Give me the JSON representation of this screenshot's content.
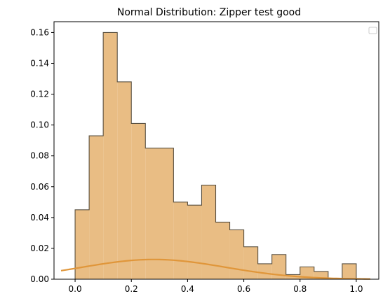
{
  "chart_data": {
    "type": "histogram",
    "title": "Normal Distribution: Zipper test good",
    "xlabel": "",
    "ylabel": "",
    "xlim": [
      -0.075,
      1.08
    ],
    "ylim": [
      0,
      0.167
    ],
    "xticks": [
      0.0,
      0.2,
      0.4,
      0.6,
      0.8,
      1.0
    ],
    "xtick_labels": [
      "0.0",
      "0.2",
      "0.4",
      "0.6",
      "0.8",
      "1.0"
    ],
    "yticks": [
      0.0,
      0.02,
      0.04,
      0.06,
      0.08,
      0.1,
      0.12,
      0.14,
      0.16
    ],
    "ytick_labels": [
      "0.00",
      "0.02",
      "0.04",
      "0.06",
      "0.08",
      "0.10",
      "0.12",
      "0.14",
      "0.16"
    ],
    "bin_edges": [
      0.0,
      0.05,
      0.1,
      0.15,
      0.2,
      0.25,
      0.35,
      0.4,
      0.45,
      0.5,
      0.55,
      0.6,
      0.65,
      0.7,
      0.75,
      0.8,
      0.85,
      0.9,
      0.95,
      1.0
    ],
    "bin_heights": [
      0.045,
      0.093,
      0.16,
      0.128,
      0.101,
      0.085,
      0.05,
      0.048,
      0.061,
      0.037,
      0.032,
      0.021,
      0.01,
      0.016,
      0.003,
      0.008,
      0.005,
      0.0,
      0.01
    ],
    "curve": {
      "type": "normal-pdf",
      "mean": 0.28,
      "std": 0.255,
      "scale": 0.0128,
      "x_range": [
        -0.05,
        1.05
      ]
    },
    "legend": {
      "placement": "top-right",
      "entries": []
    },
    "grid": false,
    "colors": {
      "bar_fill": "#e9bd84",
      "bar_edge": "#5a5040",
      "curve": "#e0963a",
      "axis": "#000000"
    }
  }
}
